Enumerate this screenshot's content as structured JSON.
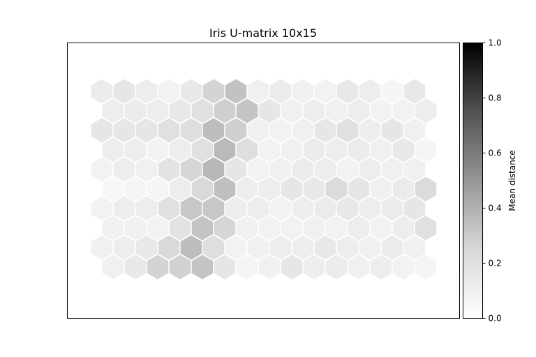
{
  "chart_data": {
    "type": "heatmap",
    "layout": "hexagonal",
    "title": "Iris U-matrix 10x15",
    "xlabel": "",
    "ylabel": "",
    "grid": false,
    "rows": 10,
    "cols": 15,
    "values": [
      [
        0.08,
        0.1,
        0.07,
        0.05,
        0.09,
        0.17,
        0.24,
        0.06,
        0.08,
        0.06,
        0.05,
        0.09,
        0.07,
        0.04,
        0.09
      ],
      [
        0.07,
        0.08,
        0.07,
        0.09,
        0.12,
        0.19,
        0.23,
        0.1,
        0.06,
        0.07,
        0.06,
        0.07,
        0.05,
        0.05,
        0.07
      ],
      [
        0.1,
        0.1,
        0.1,
        0.12,
        0.13,
        0.26,
        0.19,
        0.06,
        0.05,
        0.06,
        0.1,
        0.12,
        0.07,
        0.1,
        0.06
      ],
      [
        0.07,
        0.07,
        0.05,
        0.07,
        0.12,
        0.27,
        0.13,
        0.05,
        0.06,
        0.08,
        0.07,
        0.08,
        0.06,
        0.09,
        0.04
      ],
      [
        0.05,
        0.07,
        0.06,
        0.11,
        0.16,
        0.28,
        0.1,
        0.05,
        0.06,
        0.08,
        0.07,
        0.05,
        0.07,
        0.06,
        0.06
      ],
      [
        0.03,
        0.04,
        0.04,
        0.07,
        0.15,
        0.25,
        0.07,
        0.07,
        0.1,
        0.09,
        0.14,
        0.1,
        0.06,
        0.08,
        0.14
      ],
      [
        0.05,
        0.07,
        0.07,
        0.12,
        0.22,
        0.22,
        0.07,
        0.07,
        0.05,
        0.07,
        0.08,
        0.09,
        0.07,
        0.08,
        0.1
      ],
      [
        0.06,
        0.06,
        0.05,
        0.11,
        0.23,
        0.16,
        0.06,
        0.05,
        0.05,
        0.06,
        0.05,
        0.07,
        0.05,
        0.07,
        0.12
      ],
      [
        0.06,
        0.07,
        0.09,
        0.15,
        0.26,
        0.13,
        0.05,
        0.06,
        0.07,
        0.07,
        0.09,
        0.07,
        0.06,
        0.08,
        0.06
      ],
      [
        0.06,
        0.09,
        0.17,
        0.18,
        0.23,
        0.1,
        0.04,
        0.06,
        0.1,
        0.07,
        0.08,
        0.06,
        0.07,
        0.05,
        0.04
      ]
    ],
    "colorbar": {
      "label": "Mean distance",
      "range": [
        0.0,
        1.0
      ],
      "ticks": [
        "0.0",
        "0.2",
        "0.4",
        "0.6",
        "0.8",
        "1.0"
      ],
      "colormap": "Greys",
      "low_color": "#ffffff",
      "high_color": "#000000"
    }
  }
}
